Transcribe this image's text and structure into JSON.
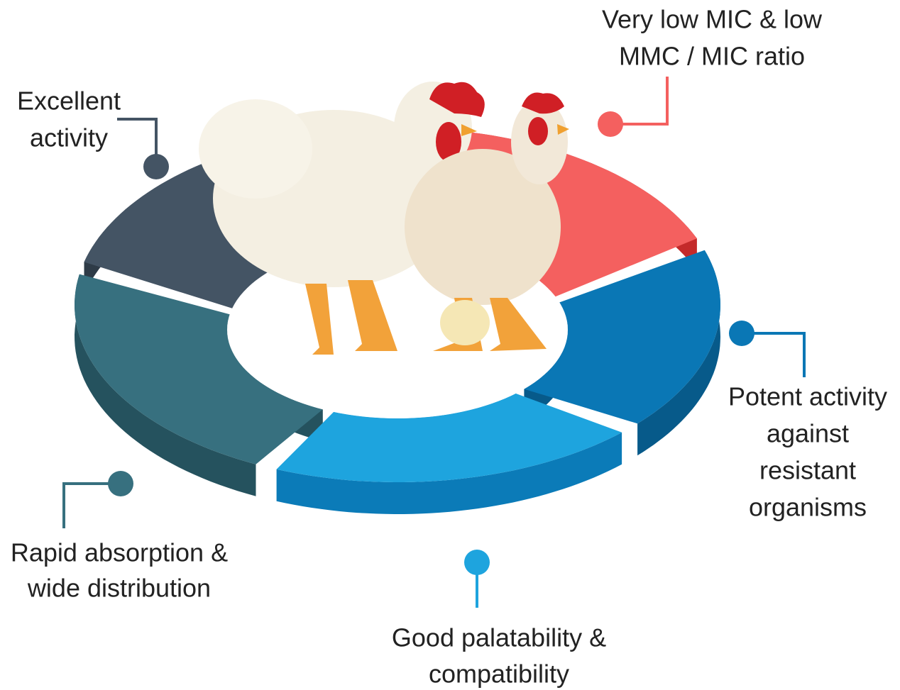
{
  "features": [
    {
      "label": [
        "Excellent",
        "activity"
      ]
    },
    {
      "label": [
        "Very low MIC & low",
        "MMC / MIC ratio"
      ]
    },
    {
      "label": [
        "Potent activity",
        "against",
        "resistant",
        "organisms"
      ]
    },
    {
      "label": [
        "Good palatability &",
        "compatibility"
      ]
    },
    {
      "label": [
        "Rapid absorption &",
        "wide distribution"
      ]
    }
  ]
}
